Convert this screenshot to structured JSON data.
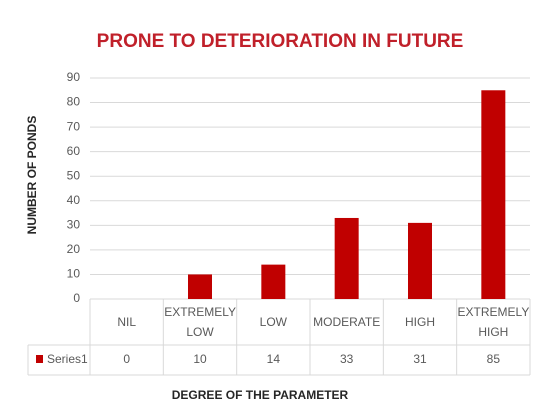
{
  "chart_data": {
    "type": "bar",
    "title": "PRONE TO DETERIORATION IN FUTURE",
    "categories": [
      "NIL",
      "EXTREMELY LOW",
      "LOW",
      "MODERATE",
      "HIGH",
      "EXTREMELY HIGH"
    ],
    "series": [
      {
        "name": "Series1",
        "color": "#c00000",
        "values": [
          0,
          10,
          14,
          33,
          31,
          85
        ]
      }
    ],
    "ylim": [
      0,
      90
    ],
    "yticks": [
      0,
      10,
      20,
      30,
      40,
      50,
      60,
      70,
      80,
      90
    ],
    "grid": true,
    "y_label": "NUMBER OF PONDS",
    "x_label": "DEGREE OF THE PARAMETER"
  }
}
